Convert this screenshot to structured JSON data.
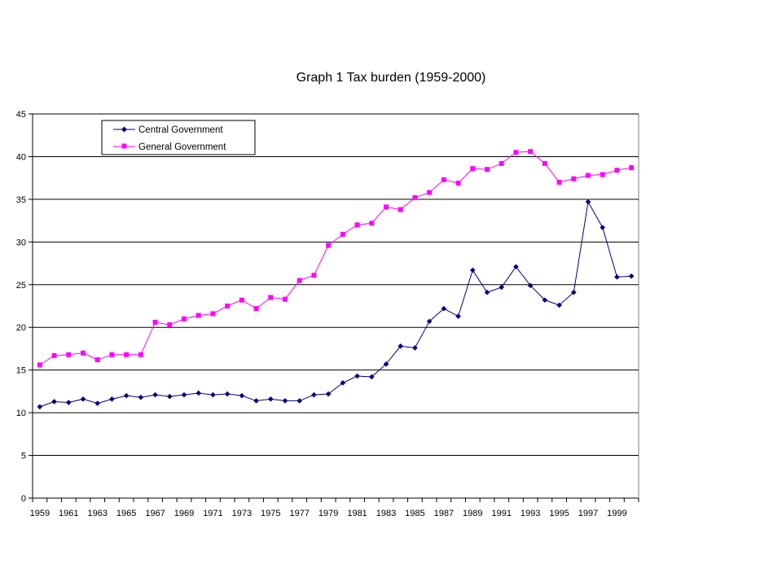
{
  "chart_data": {
    "type": "line",
    "title": "Graph 1 Tax burden  (1959-2000)",
    "xlabel": "",
    "ylabel": "",
    "ylim": [
      0,
      45
    ],
    "yticks": [
      0,
      5,
      10,
      15,
      20,
      25,
      30,
      35,
      40,
      45
    ],
    "x": [
      1959,
      1960,
      1961,
      1962,
      1963,
      1964,
      1965,
      1966,
      1967,
      1968,
      1969,
      1970,
      1971,
      1972,
      1973,
      1974,
      1975,
      1976,
      1977,
      1978,
      1979,
      1980,
      1981,
      1982,
      1983,
      1984,
      1985,
      1986,
      1987,
      1988,
      1989,
      1990,
      1991,
      1992,
      1993,
      1994,
      1995,
      1996,
      1997,
      1998,
      1999,
      2000
    ],
    "xtick_labels": [
      "1959",
      "1961",
      "1963",
      "1965",
      "1967",
      "1969",
      "1971",
      "1973",
      "1975",
      "1977",
      "1979",
      "1981",
      "1983",
      "1985",
      "1987",
      "1989",
      "1991",
      "1993",
      "1995",
      "1997",
      "1999"
    ],
    "grid": "horizontal",
    "legend_position": "top-left",
    "series": [
      {
        "name": "Central Government",
        "color": "#000080",
        "marker": "diamond",
        "values": [
          10.7,
          11.3,
          11.2,
          11.6,
          11.1,
          11.6,
          12.0,
          11.8,
          12.1,
          11.9,
          12.1,
          12.3,
          12.1,
          12.2,
          12.0,
          11.4,
          11.6,
          11.4,
          11.4,
          12.1,
          12.2,
          13.5,
          14.3,
          14.2,
          15.7,
          17.8,
          17.6,
          20.7,
          22.2,
          21.3,
          26.7,
          24.1,
          24.7,
          27.1,
          24.9,
          23.2,
          22.6,
          24.1,
          34.7,
          31.7,
          25.9,
          26.0
        ]
      },
      {
        "name": "General Government",
        "color": "#ff00ff",
        "marker": "square",
        "values": [
          15.6,
          16.7,
          16.8,
          17.0,
          16.2,
          16.8,
          16.8,
          16.8,
          20.6,
          20.3,
          21.0,
          21.4,
          21.6,
          22.5,
          23.2,
          22.2,
          23.5,
          23.3,
          25.5,
          26.1,
          29.6,
          30.9,
          32.0,
          32.2,
          34.1,
          33.8,
          35.2,
          35.8,
          37.3,
          36.9,
          38.6,
          38.5,
          39.2,
          40.5,
          40.6,
          39.2,
          37.0,
          37.4,
          37.8,
          37.9,
          38.4,
          38.7
        ]
      }
    ]
  }
}
